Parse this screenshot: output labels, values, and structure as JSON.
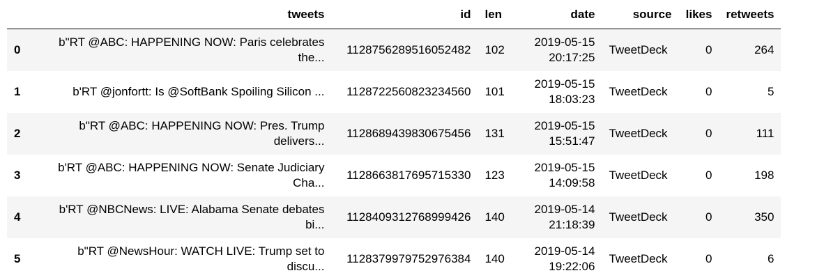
{
  "table": {
    "columns": [
      "",
      "tweets",
      "id",
      "len",
      "date",
      "source",
      "likes",
      "retweets"
    ],
    "rows": [
      {
        "index": "0",
        "tweets": "b\"RT @ABC: HAPPENING NOW: Paris celebrates the...",
        "id": "1128756289516052482",
        "len": "102",
        "date": "2019-05-15 20:17:25",
        "source": "TweetDeck",
        "likes": "0",
        "retweets": "264"
      },
      {
        "index": "1",
        "tweets": "b'RT @jonfortt: Is @SoftBank Spoiling Silicon ...",
        "id": "1128722560823234560",
        "len": "101",
        "date": "2019-05-15 18:03:23",
        "source": "TweetDeck",
        "likes": "0",
        "retweets": "5"
      },
      {
        "index": "2",
        "tweets": "b\"RT @ABC: HAPPENING NOW: Pres. Trump delivers...",
        "id": "1128689439830675456",
        "len": "131",
        "date": "2019-05-15 15:51:47",
        "source": "TweetDeck",
        "likes": "0",
        "retweets": "111"
      },
      {
        "index": "3",
        "tweets": "b'RT @ABC: HAPPENING NOW: Senate Judiciary Cha...",
        "id": "1128663817695715330",
        "len": "123",
        "date": "2019-05-15 14:09:58",
        "source": "TweetDeck",
        "likes": "0",
        "retweets": "198"
      },
      {
        "index": "4",
        "tweets": "b'RT @NBCNews: LIVE: Alabama Senate debates bi...",
        "id": "1128409312768999426",
        "len": "140",
        "date": "2019-05-14 21:18:39",
        "source": "TweetDeck",
        "likes": "0",
        "retweets": "350"
      },
      {
        "index": "5",
        "tweets": "b\"RT @NewsHour: WATCH LIVE: Trump set to discu...",
        "id": "1128379979752976384",
        "len": "140",
        "date": "2019-05-14 19:22:06",
        "source": "TweetDeck",
        "likes": "0",
        "retweets": "6"
      }
    ]
  }
}
